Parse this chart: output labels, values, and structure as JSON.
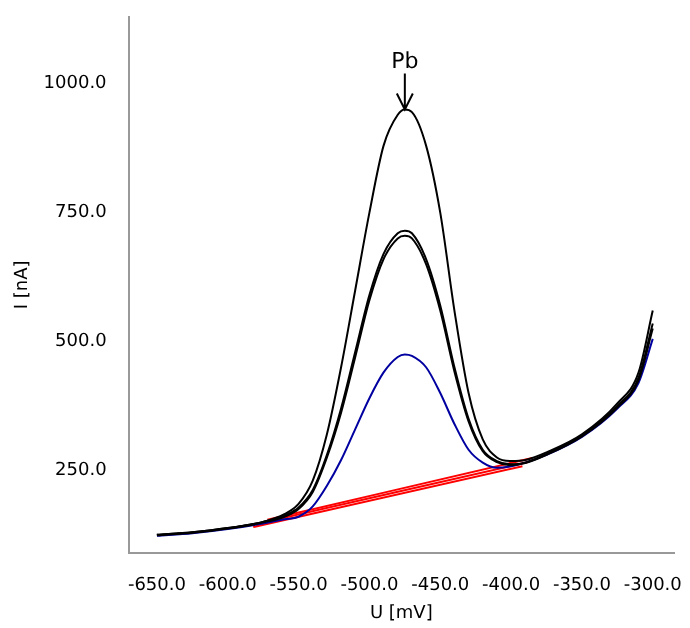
{
  "chart_data": {
    "type": "line",
    "xlabel": "U [mV]",
    "ylabel": "I [nA]",
    "xlim": [
      -670,
      -285
    ],
    "ylim": [
      90,
      1130
    ],
    "xticks": [
      {
        "value": -650,
        "label": "-650.0"
      },
      {
        "value": -600,
        "label": "-600.0"
      },
      {
        "value": -550,
        "label": "-550.0"
      },
      {
        "value": -500,
        "label": "-500.0"
      },
      {
        "value": -450,
        "label": "-450.0"
      },
      {
        "value": -400,
        "label": "-400.0"
      },
      {
        "value": -350,
        "label": "-350.0"
      },
      {
        "value": -300,
        "label": "-300.0"
      }
    ],
    "yticks": [
      {
        "value": 250,
        "label": "250.0"
      },
      {
        "value": 500,
        "label": "500.0"
      },
      {
        "value": 750,
        "label": "750.0"
      },
      {
        "value": 1000,
        "label": "1000.0"
      }
    ],
    "grid": false,
    "legend": false,
    "marker": "none",
    "line_style": "solid",
    "annotations": [
      {
        "text": "Pb",
        "x": -475,
        "y": 950
      }
    ],
    "series": [
      {
        "color": "#000000",
        "x": [
          -650,
          -625,
          -600,
          -575,
          -560,
          -550,
          -540,
          -530,
          -520,
          -510,
          -500,
          -490,
          -480,
          -475,
          -470,
          -460,
          -450,
          -440,
          -430,
          -420,
          -410,
          -400,
          -390,
          -375,
          -350,
          -325,
          -310,
          -300
        ],
        "values": [
          125,
          130,
          138,
          150,
          165,
          185,
          230,
          320,
          450,
          600,
          750,
          880,
          940,
          950,
          945,
          880,
          750,
          560,
          400,
          310,
          275,
          268,
          270,
          285,
          320,
          380,
          440,
          560
        ]
      },
      {
        "color": "#000000",
        "x": [
          -650,
          -625,
          -600,
          -575,
          -560,
          -550,
          -540,
          -530,
          -520,
          -510,
          -500,
          -490,
          -480,
          -475,
          -470,
          -460,
          -450,
          -440,
          -430,
          -420,
          -410,
          -400,
          -390,
          -375,
          -350,
          -325,
          -310,
          -300
        ],
        "values": [
          125,
          130,
          138,
          150,
          162,
          178,
          212,
          280,
          370,
          480,
          590,
          670,
          710,
          715,
          710,
          660,
          570,
          450,
          350,
          290,
          268,
          262,
          265,
          282,
          318,
          375,
          430,
          535
        ]
      },
      {
        "color": "#000000",
        "x": [
          -650,
          -625,
          -600,
          -575,
          -560,
          -550,
          -540,
          -530,
          -520,
          -510,
          -500,
          -490,
          -480,
          -475,
          -470,
          -460,
          -450,
          -440,
          -430,
          -420,
          -410,
          -400,
          -390,
          -375,
          -350,
          -325,
          -310,
          -300
        ],
        "values": [
          124,
          129,
          137,
          149,
          160,
          175,
          208,
          275,
          362,
          470,
          580,
          660,
          700,
          705,
          700,
          650,
          560,
          442,
          345,
          287,
          266,
          260,
          264,
          280,
          316,
          372,
          425,
          525
        ]
      },
      {
        "color": "#0000a0",
        "x": [
          -650,
          -625,
          -600,
          -575,
          -560,
          -550,
          -540,
          -530,
          -520,
          -510,
          -500,
          -490,
          -480,
          -475,
          -470,
          -460,
          -450,
          -440,
          -430,
          -420,
          -410,
          -400,
          -390,
          -375,
          -350,
          -325,
          -310,
          -300
        ],
        "values": [
          123,
          128,
          136,
          147,
          155,
          160,
          180,
          220,
          270,
          330,
          390,
          440,
          470,
          475,
          472,
          450,
          400,
          340,
          290,
          265,
          255,
          258,
          265,
          280,
          315,
          370,
          420,
          505
        ]
      },
      {
        "color": "#ff0000",
        "x": [
          -582,
          -392
        ],
        "values": [
          140,
          258
        ]
      },
      {
        "color": "#ff0000",
        "x": [
          -578,
          -388
        ],
        "values": [
          147,
          266
        ]
      },
      {
        "color": "#ff0000",
        "x": [
          -572,
          -385
        ],
        "values": [
          154,
          274
        ]
      }
    ]
  }
}
